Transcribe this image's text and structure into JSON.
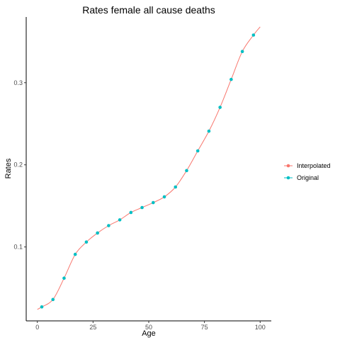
{
  "chart_data": {
    "type": "line",
    "title": "Rates female all cause deaths",
    "xlabel": "Age",
    "ylabel": "Rates",
    "xlim": [
      -5,
      105
    ],
    "ylim": [
      0.01,
      0.38
    ],
    "x_ticks": [
      0,
      25,
      50,
      75,
      100
    ],
    "y_ticks": [
      0.1,
      0.2,
      0.3
    ],
    "x_tick_labels": [
      "0",
      "25",
      "50",
      "75",
      "100"
    ],
    "y_tick_labels": [
      "0.1",
      "0.2",
      "0.3"
    ],
    "grid": false,
    "legend_position": "right",
    "series": [
      {
        "name": "Interpolated",
        "color": "#F8766D",
        "style": "line",
        "x": [
          0,
          2,
          7,
          12,
          17,
          22,
          27,
          32,
          37,
          42,
          47,
          52,
          57,
          62,
          67,
          72,
          77,
          82,
          87,
          92,
          97,
          100
        ],
        "y": [
          0.024,
          0.027,
          0.036,
          0.062,
          0.091,
          0.106,
          0.117,
          0.126,
          0.133,
          0.142,
          0.148,
          0.154,
          0.161,
          0.173,
          0.193,
          0.217,
          0.241,
          0.27,
          0.304,
          0.338,
          0.358,
          0.368
        ]
      },
      {
        "name": "Original",
        "color": "#00BFC4",
        "style": "points",
        "x": [
          2,
          7,
          12,
          17,
          22,
          27,
          32,
          37,
          42,
          47,
          52,
          57,
          62,
          67,
          72,
          77,
          82,
          87,
          92,
          97
        ],
        "y": [
          0.027,
          0.036,
          0.062,
          0.091,
          0.106,
          0.117,
          0.126,
          0.133,
          0.142,
          0.148,
          0.154,
          0.161,
          0.173,
          0.193,
          0.217,
          0.241,
          0.27,
          0.304,
          0.338,
          0.358
        ]
      }
    ]
  }
}
